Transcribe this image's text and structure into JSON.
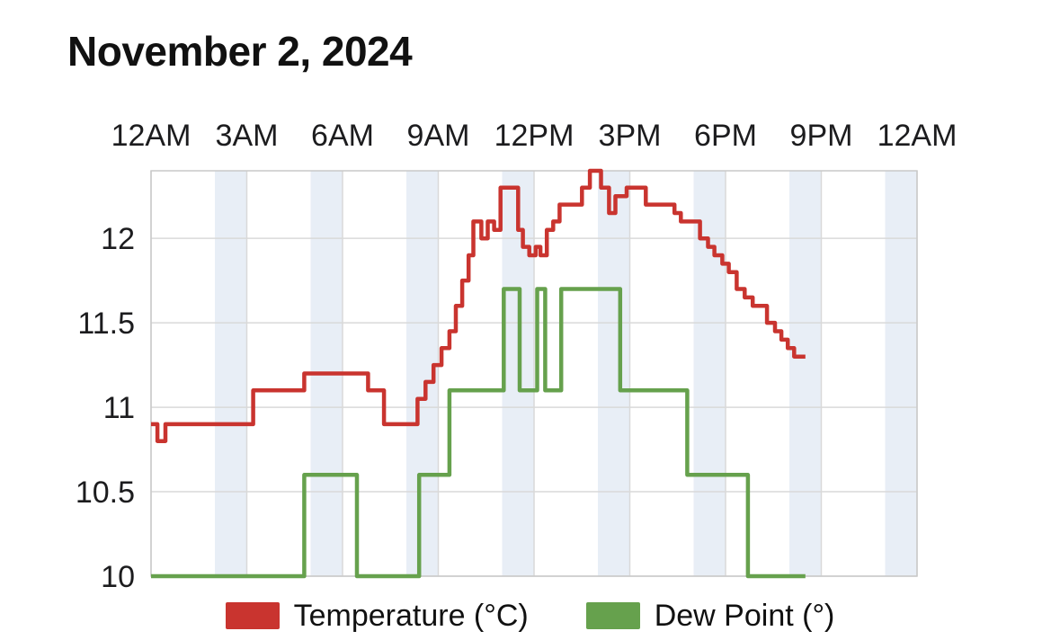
{
  "page": {
    "title": "November 2, 2024"
  },
  "chart_data": {
    "type": "line",
    "title": "November 2, 2024",
    "x_unit": "hours (0 = 12AM)",
    "xlim": [
      0,
      24
    ],
    "ylim": [
      10,
      12.4
    ],
    "grid": true,
    "legend_position": "bottom",
    "x_tick_hours": [
      0,
      3,
      6,
      9,
      12,
      15,
      18,
      21,
      24
    ],
    "x_tick_labels": [
      "12AM",
      "3AM",
      "6AM",
      "9AM",
      "12PM",
      "3PM",
      "6PM",
      "9PM",
      "12AM"
    ],
    "y_ticks": [
      10,
      10.5,
      11,
      11.5,
      12
    ],
    "bands": {
      "color": "#e8eef6",
      "hours": [
        [
          2,
          3
        ],
        [
          5,
          6
        ],
        [
          8,
          9
        ],
        [
          11,
          12
        ],
        [
          14,
          15
        ],
        [
          17,
          18
        ],
        [
          20,
          21
        ],
        [
          23,
          24
        ]
      ]
    },
    "colors": {
      "temperature": "#c9342f",
      "dew_point": "#66a14d",
      "gridline": "#d9d9d9",
      "plot_border": "#c9c9c9",
      "tick_text": "#1c1c1e"
    },
    "series": [
      {
        "name": "Temperature (°C)",
        "color": "#c9342f",
        "step": "after",
        "points": [
          [
            0,
            10.9
          ],
          [
            0.2,
            10.8
          ],
          [
            0.45,
            10.9
          ],
          [
            3.2,
            11.1
          ],
          [
            4.8,
            11.2
          ],
          [
            6.8,
            11.1
          ],
          [
            7.3,
            10.9
          ],
          [
            8.35,
            11.05
          ],
          [
            8.6,
            11.15
          ],
          [
            8.85,
            11.25
          ],
          [
            9.1,
            11.35
          ],
          [
            9.35,
            11.45
          ],
          [
            9.55,
            11.6
          ],
          [
            9.75,
            11.75
          ],
          [
            9.95,
            11.9
          ],
          [
            10.1,
            12.1
          ],
          [
            10.35,
            12.0
          ],
          [
            10.55,
            12.1
          ],
          [
            10.75,
            12.05
          ],
          [
            10.95,
            12.3
          ],
          [
            11.5,
            12.05
          ],
          [
            11.65,
            11.95
          ],
          [
            11.85,
            11.9
          ],
          [
            12.05,
            11.95
          ],
          [
            12.2,
            11.9
          ],
          [
            12.4,
            12.05
          ],
          [
            12.6,
            12.1
          ],
          [
            12.8,
            12.2
          ],
          [
            13.5,
            12.3
          ],
          [
            13.75,
            12.4
          ],
          [
            14.1,
            12.3
          ],
          [
            14.35,
            12.15
          ],
          [
            14.55,
            12.25
          ],
          [
            14.9,
            12.3
          ],
          [
            15.5,
            12.2
          ],
          [
            16.4,
            12.15
          ],
          [
            16.6,
            12.1
          ],
          [
            17.2,
            12.0
          ],
          [
            17.45,
            11.95
          ],
          [
            17.65,
            11.9
          ],
          [
            17.9,
            11.85
          ],
          [
            18.1,
            11.8
          ],
          [
            18.35,
            11.7
          ],
          [
            18.6,
            11.65
          ],
          [
            18.85,
            11.6
          ],
          [
            19.3,
            11.5
          ],
          [
            19.55,
            11.45
          ],
          [
            19.75,
            11.4
          ],
          [
            19.95,
            11.35
          ],
          [
            20.15,
            11.3
          ],
          [
            20.5,
            11.3
          ]
        ]
      },
      {
        "name": "Dew Point (°)",
        "color": "#66a14d",
        "step": "after",
        "points": [
          [
            0,
            10.0
          ],
          [
            4.8,
            10.6
          ],
          [
            6.45,
            10.0
          ],
          [
            8.4,
            10.6
          ],
          [
            9.35,
            11.1
          ],
          [
            11.05,
            11.7
          ],
          [
            11.55,
            11.1
          ],
          [
            12.1,
            11.7
          ],
          [
            12.35,
            11.1
          ],
          [
            12.85,
            11.7
          ],
          [
            14.7,
            11.1
          ],
          [
            16.8,
            10.6
          ],
          [
            18.7,
            10.0
          ],
          [
            20.5,
            10.0
          ]
        ]
      }
    ]
  }
}
